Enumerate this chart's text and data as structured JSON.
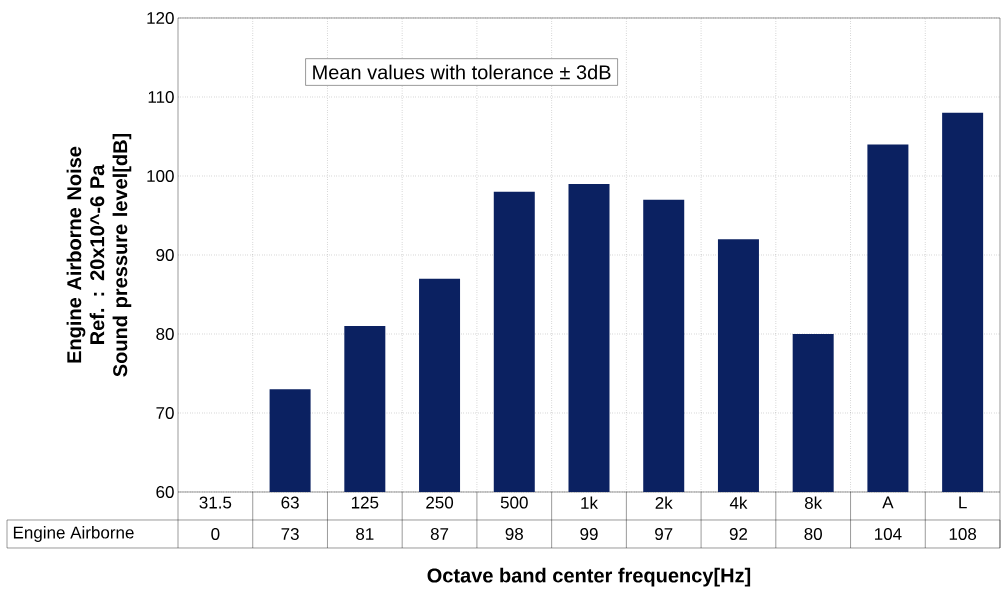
{
  "chart_data": {
    "type": "bar",
    "ylabel": "Engine Airborne Noise\nRef. : 20x10^-6 Pa\nSound pressure level[dB]",
    "xlabel": "Octave band center frequency[Hz]",
    "categories": [
      "31.5",
      "63",
      "125",
      "250",
      "500",
      "1k",
      "2k",
      "4k",
      "8k",
      "A",
      "L"
    ],
    "series": [
      {
        "name": "Engine Airborne",
        "color": "#0b2161",
        "values": [
          null,
          73,
          81,
          87,
          98,
          99,
          97,
          92,
          80,
          104,
          108
        ],
        "value_labels": [
          "0",
          "73",
          "81",
          "87",
          "98",
          "99",
          "97",
          "92",
          "80",
          "104",
          "108"
        ]
      }
    ],
    "ylim": [
      60,
      120
    ],
    "yticks": [
      60,
      70,
      80,
      90,
      100,
      110,
      120
    ],
    "grid": true,
    "annotations": [
      "Mean values with tolerance ± 3dB"
    ]
  }
}
